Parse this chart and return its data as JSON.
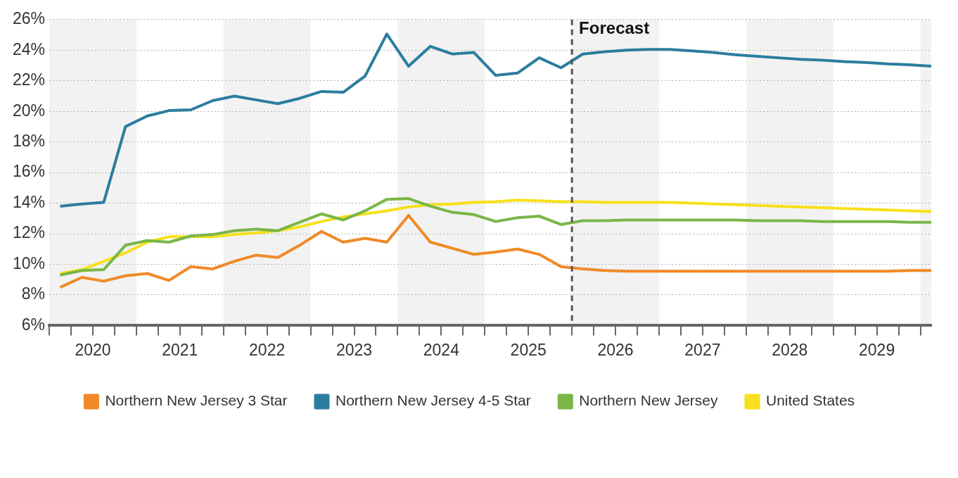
{
  "chart_data": {
    "type": "line",
    "legend": "bottom",
    "grid": "y",
    "marker": "none",
    "line_style": "solid",
    "x": [
      2020.125,
      2020.375,
      2020.625,
      2020.875,
      2021.125,
      2021.375,
      2021.625,
      2021.875,
      2022.125,
      2022.375,
      2022.625,
      2022.875,
      2023.125,
      2023.375,
      2023.625,
      2023.875,
      2024.125,
      2024.375,
      2024.625,
      2024.875,
      2025.125,
      2025.375,
      2025.625,
      2025.875,
      2026.125,
      2026.375,
      2026.625,
      2026.875,
      2027.125,
      2027.375,
      2027.625,
      2027.875,
      2028.125,
      2028.375,
      2028.625,
      2028.875,
      2029.125,
      2029.375,
      2029.625,
      2029.875,
      2030.125
    ],
    "xlim": [
      2020,
      2030.125
    ],
    "xticks": [
      {
        "value": 2020,
        "label": null
      },
      {
        "value": 2020.25,
        "label": null
      },
      {
        "value": 2020.5,
        "label": "2020"
      },
      {
        "value": 2020.75,
        "label": null
      },
      {
        "value": 2021,
        "label": null
      },
      {
        "value": 2021.25,
        "label": null
      },
      {
        "value": 2021.5,
        "label": "2021"
      },
      {
        "value": 2021.75,
        "label": null
      },
      {
        "value": 2022,
        "label": null
      },
      {
        "value": 2022.25,
        "label": null
      },
      {
        "value": 2022.5,
        "label": "2022"
      },
      {
        "value": 2022.75,
        "label": null
      },
      {
        "value": 2023,
        "label": null
      },
      {
        "value": 2023.25,
        "label": null
      },
      {
        "value": 2023.5,
        "label": "2023"
      },
      {
        "value": 2023.75,
        "label": null
      },
      {
        "value": 2024,
        "label": null
      },
      {
        "value": 2024.25,
        "label": null
      },
      {
        "value": 2024.5,
        "label": "2024"
      },
      {
        "value": 2024.75,
        "label": null
      },
      {
        "value": 2025,
        "label": null
      },
      {
        "value": 2025.25,
        "label": null
      },
      {
        "value": 2025.5,
        "label": "2025"
      },
      {
        "value": 2025.75,
        "label": null
      },
      {
        "value": 2026,
        "label": null
      },
      {
        "value": 2026.25,
        "label": null
      },
      {
        "value": 2026.5,
        "label": "2026"
      },
      {
        "value": 2026.75,
        "label": null
      },
      {
        "value": 2027,
        "label": null
      },
      {
        "value": 2027.25,
        "label": null
      },
      {
        "value": 2027.5,
        "label": "2027"
      },
      {
        "value": 2027.75,
        "label": null
      },
      {
        "value": 2028,
        "label": null
      },
      {
        "value": 2028.25,
        "label": null
      },
      {
        "value": 2028.5,
        "label": "2028"
      },
      {
        "value": 2028.75,
        "label": null
      },
      {
        "value": 2029,
        "label": null
      },
      {
        "value": 2029.25,
        "label": null
      },
      {
        "value": 2029.5,
        "label": "2029"
      },
      {
        "value": 2029.75,
        "label": null
      },
      {
        "value": 2030,
        "label": null
      }
    ],
    "ylim": [
      6,
      26
    ],
    "yticks": [
      {
        "value": 6,
        "label": "6%"
      },
      {
        "value": 8,
        "label": "8%"
      },
      {
        "value": 10,
        "label": "10%"
      },
      {
        "value": 12,
        "label": "12%"
      },
      {
        "value": 14,
        "label": "14%"
      },
      {
        "value": 16,
        "label": "16%"
      },
      {
        "value": 18,
        "label": "18%"
      },
      {
        "value": 20,
        "label": "20%"
      },
      {
        "value": 22,
        "label": "22%"
      },
      {
        "value": 24,
        "label": "24%"
      },
      {
        "value": 26,
        "label": "26%"
      }
    ],
    "bands": [
      {
        "axis": "x",
        "from": 2020,
        "to": 2021,
        "color": "#f2f2f2"
      },
      {
        "axis": "x",
        "from": 2022,
        "to": 2023,
        "color": "#f2f2f2"
      },
      {
        "axis": "x",
        "from": 2024,
        "to": 2025,
        "color": "#f2f2f2"
      },
      {
        "axis": "x",
        "from": 2026,
        "to": 2027,
        "color": "#f2f2f2"
      },
      {
        "axis": "x",
        "from": 2028,
        "to": 2029,
        "color": "#f2f2f2"
      },
      {
        "axis": "x",
        "from": 2030,
        "to": 2030.125,
        "color": "#f2f2f2"
      }
    ],
    "ref_lines": [
      {
        "axis": "x",
        "value": 2026,
        "label": "Forecast",
        "color": "#555555",
        "line_style": "dashed"
      }
    ],
    "series": [
      {
        "name": "Northern New Jersey 3 Star",
        "color": "#f08a28",
        "values": [
          8.5,
          9.15,
          8.9,
          9.25,
          9.4,
          8.95,
          9.85,
          9.7,
          10.2,
          10.6,
          10.45,
          11.25,
          12.15,
          11.45,
          11.7,
          11.45,
          13.2,
          11.45,
          11.05,
          10.65,
          10.8,
          11.0,
          10.65,
          9.85,
          9.7,
          9.6,
          9.55,
          9.55,
          9.55,
          9.55,
          9.55,
          9.55,
          9.55,
          9.55,
          9.55,
          9.55,
          9.55,
          9.55,
          9.55,
          9.6,
          9.6
        ]
      },
      {
        "name": "Northern New Jersey 4-5 Star",
        "color": "#2b7d9f",
        "values": [
          13.8,
          13.95,
          14.05,
          19.0,
          19.7,
          20.05,
          20.1,
          20.7,
          21.0,
          20.75,
          20.5,
          20.85,
          21.3,
          21.25,
          22.3,
          25.05,
          22.95,
          24.25,
          23.75,
          23.85,
          22.35,
          22.5,
          23.5,
          22.85,
          23.75,
          23.9,
          24.0,
          24.05,
          24.05,
          23.95,
          23.85,
          23.7,
          23.6,
          23.5,
          23.4,
          23.35,
          23.25,
          23.2,
          23.1,
          23.05,
          22.95
        ]
      },
      {
        "name": "Northern New Jersey",
        "color": "#7ab648",
        "values": [
          9.3,
          9.6,
          9.65,
          11.25,
          11.55,
          11.45,
          11.85,
          11.95,
          12.2,
          12.3,
          12.2,
          12.75,
          13.3,
          12.9,
          13.5,
          14.25,
          14.3,
          13.8,
          13.4,
          13.25,
          12.8,
          13.05,
          13.15,
          12.6,
          12.85,
          12.85,
          12.9,
          12.9,
          12.9,
          12.9,
          12.9,
          12.9,
          12.85,
          12.85,
          12.85,
          12.8,
          12.8,
          12.8,
          12.8,
          12.75,
          12.75
        ]
      },
      {
        "name": "United States",
        "color": "#f7e01c",
        "values": [
          9.4,
          9.65,
          10.2,
          10.75,
          11.45,
          11.8,
          11.8,
          11.8,
          11.95,
          12.05,
          12.2,
          12.45,
          12.8,
          13.1,
          13.3,
          13.5,
          13.75,
          13.9,
          13.95,
          14.05,
          14.1,
          14.2,
          14.15,
          14.1,
          14.1,
          14.05,
          14.05,
          14.05,
          14.05,
          14.0,
          13.95,
          13.9,
          13.85,
          13.8,
          13.75,
          13.7,
          13.65,
          13.6,
          13.55,
          13.5,
          13.45
        ]
      }
    ]
  }
}
